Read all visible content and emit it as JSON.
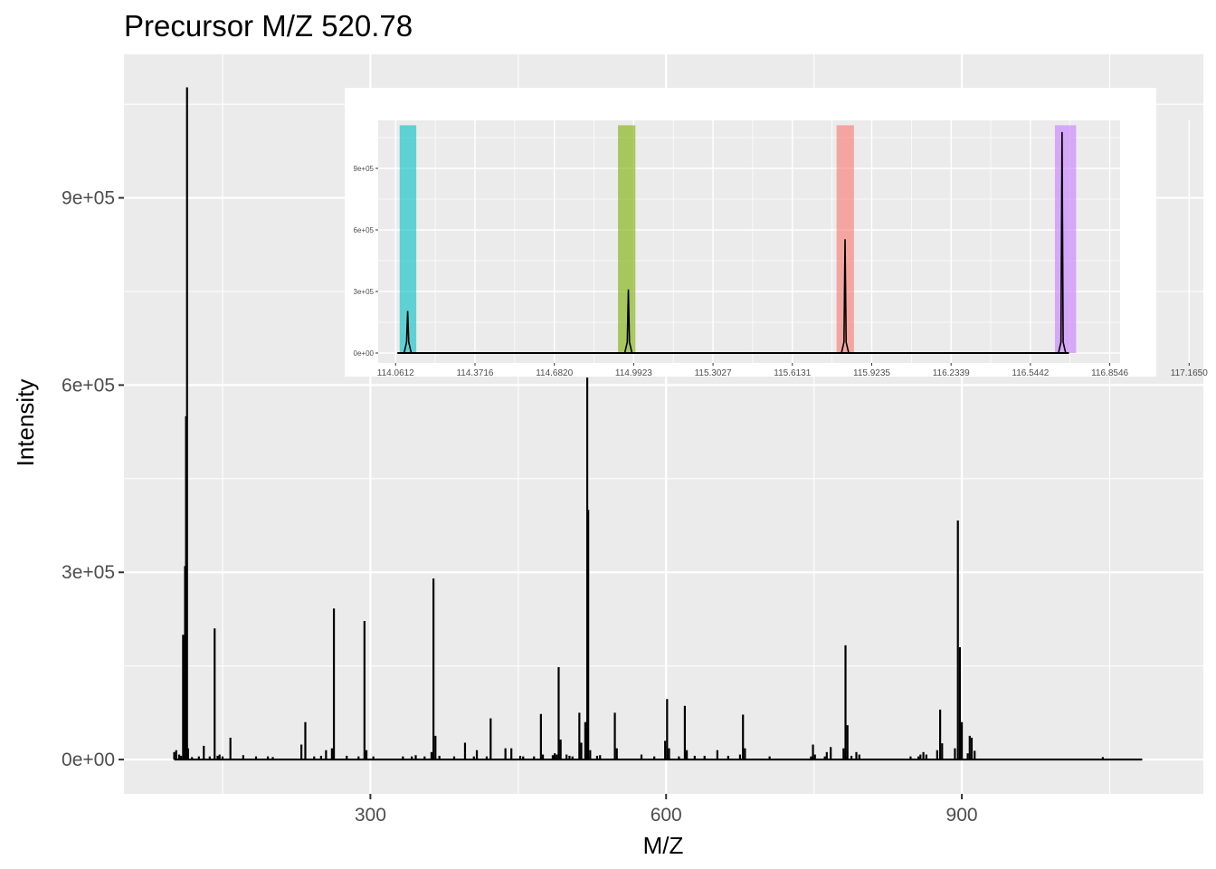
{
  "chart_data": [
    {
      "type": "line",
      "title": "Precursor M/Z 520.78",
      "xlabel": "M/Z",
      "ylabel": "Intensity",
      "xlim": [
        50,
        1145
      ],
      "ylim": [
        -55000,
        1130000
      ],
      "x_ticks": [
        300,
        600,
        900
      ],
      "x_tick_labels": [
        "300",
        "600",
        "900"
      ],
      "y_ticks": [
        0,
        300000,
        600000,
        900000
      ],
      "y_tick_labels": [
        "0e+00",
        "3e+05",
        "6e+05",
        "9e+05"
      ],
      "x_minor": [
        150,
        450,
        750,
        1050
      ],
      "y_minor": [
        150000,
        450000,
        750000,
        1050000
      ],
      "x_range_line": [
        101,
        1083
      ],
      "grid": true,
      "background": "#ebebeb",
      "line_color": "#000000",
      "peaks": [
        [
          101,
          12000
        ],
        [
          103,
          15000
        ],
        [
          106,
          8000
        ],
        [
          108,
          6000
        ],
        [
          110,
          200000
        ],
        [
          112,
          310000
        ],
        [
          113,
          550000
        ],
        [
          114,
          1077000
        ],
        [
          115,
          18000
        ],
        [
          119,
          4000
        ],
        [
          126,
          5000
        ],
        [
          131,
          22000
        ],
        [
          137,
          5000
        ],
        [
          142,
          210000
        ],
        [
          145,
          6000
        ],
        [
          147,
          8000
        ],
        [
          150,
          5000
        ],
        [
          158,
          35000
        ],
        [
          171,
          7000
        ],
        [
          184,
          5000
        ],
        [
          196,
          5000
        ],
        [
          201,
          4000
        ],
        [
          230,
          24000
        ],
        [
          234,
          60000
        ],
        [
          243,
          5000
        ],
        [
          250,
          6000
        ],
        [
          255,
          15000
        ],
        [
          261,
          18000
        ],
        [
          263,
          242000
        ],
        [
          276,
          6000
        ],
        [
          288,
          5000
        ],
        [
          294,
          222000
        ],
        [
          296,
          15000
        ],
        [
          303,
          5000
        ],
        [
          333,
          5000
        ],
        [
          342,
          5000
        ],
        [
          346,
          7000
        ],
        [
          355,
          5000
        ],
        [
          362,
          12000
        ],
        [
          364,
          290000
        ],
        [
          366,
          38000
        ],
        [
          370,
          6000
        ],
        [
          385,
          5000
        ],
        [
          396,
          27000
        ],
        [
          405,
          5000
        ],
        [
          408,
          15000
        ],
        [
          418,
          5000
        ],
        [
          422,
          66000
        ],
        [
          437,
          18000
        ],
        [
          443,
          18000
        ],
        [
          452,
          6000
        ],
        [
          455,
          5000
        ],
        [
          466,
          5000
        ],
        [
          473,
          73000
        ],
        [
          475,
          8000
        ],
        [
          485,
          7000
        ],
        [
          487,
          10000
        ],
        [
          489,
          8000
        ],
        [
          491,
          148000
        ],
        [
          493,
          32000
        ],
        [
          499,
          8000
        ],
        [
          502,
          6000
        ],
        [
          505,
          5000
        ],
        [
          512,
          75000
        ],
        [
          514,
          27000
        ],
        [
          518,
          60000
        ],
        [
          520,
          612000
        ],
        [
          521,
          400000
        ],
        [
          523,
          15000
        ],
        [
          530,
          6000
        ],
        [
          533,
          7000
        ],
        [
          548,
          75000
        ],
        [
          550,
          18000
        ],
        [
          575,
          8000
        ],
        [
          588,
          5000
        ],
        [
          599,
          30000
        ],
        [
          601,
          97000
        ],
        [
          603,
          18000
        ],
        [
          613,
          5000
        ],
        [
          619,
          86000
        ],
        [
          621,
          15000
        ],
        [
          629,
          6000
        ],
        [
          639,
          6000
        ],
        [
          652,
          15000
        ],
        [
          663,
          6000
        ],
        [
          675,
          8000
        ],
        [
          678,
          72000
        ],
        [
          680,
          18000
        ],
        [
          705,
          5000
        ],
        [
          747,
          5000
        ],
        [
          749,
          24000
        ],
        [
          751,
          8000
        ],
        [
          761,
          5000
        ],
        [
          763,
          12000
        ],
        [
          767,
          20000
        ],
        [
          780,
          18000
        ],
        [
          782,
          183000
        ],
        [
          784,
          55000
        ],
        [
          788,
          6000
        ],
        [
          793,
          12000
        ],
        [
          796,
          8000
        ],
        [
          848,
          5000
        ],
        [
          856,
          5000
        ],
        [
          858,
          8000
        ],
        [
          861,
          12000
        ],
        [
          864,
          8000
        ],
        [
          875,
          15000
        ],
        [
          878,
          80000
        ],
        [
          880,
          26000
        ],
        [
          893,
          18000
        ],
        [
          896,
          383000
        ],
        [
          898,
          180000
        ],
        [
          900,
          60000
        ],
        [
          906,
          10000
        ],
        [
          908,
          38000
        ],
        [
          910,
          35000
        ],
        [
          913,
          14000
        ],
        [
          1043,
          4000
        ]
      ]
    },
    {
      "type": "line",
      "xlim": [
        113.993,
        116.895
      ],
      "ylim": [
        0,
        1110000
      ],
      "x_ticks": [
        114.0612,
        114.3716,
        114.682,
        114.9923,
        115.3027,
        115.6131,
        115.9235,
        116.2339,
        116.5442,
        116.8546,
        117.165
      ],
      "x_tick_labels": [
        "114.0612",
        "114.3716",
        "114.6820",
        "114.9923",
        "115.3027",
        "115.6131",
        "115.9235",
        "116.2339",
        "116.5442",
        "116.8546",
        "117.1650"
      ],
      "y_ticks": [
        0,
        300000,
        600000,
        900000
      ],
      "y_tick_labels": [
        "0e+00",
        "3e+05",
        "6e+05",
        "9e+05"
      ],
      "grid": true,
      "background": "#ebebeb",
      "line_color": "#000000",
      "highlight_bands": [
        {
          "x": [
            114.077,
            114.142
          ],
          "color": "#00bfc4"
        },
        {
          "x": [
            114.931,
            114.999
          ],
          "color": "#7cae00"
        },
        {
          "x": [
            115.786,
            115.854
          ],
          "color": "#f8766d"
        },
        {
          "x": [
            116.64,
            116.723
          ],
          "color": "#c77cff"
        }
      ],
      "peaks": [
        {
          "x": 114.1083,
          "y": 205000
        },
        {
          "x": 114.9716,
          "y": 310000
        },
        {
          "x": 115.8192,
          "y": 555000
        },
        {
          "x": 116.668,
          "y": 1077000
        }
      ]
    }
  ]
}
